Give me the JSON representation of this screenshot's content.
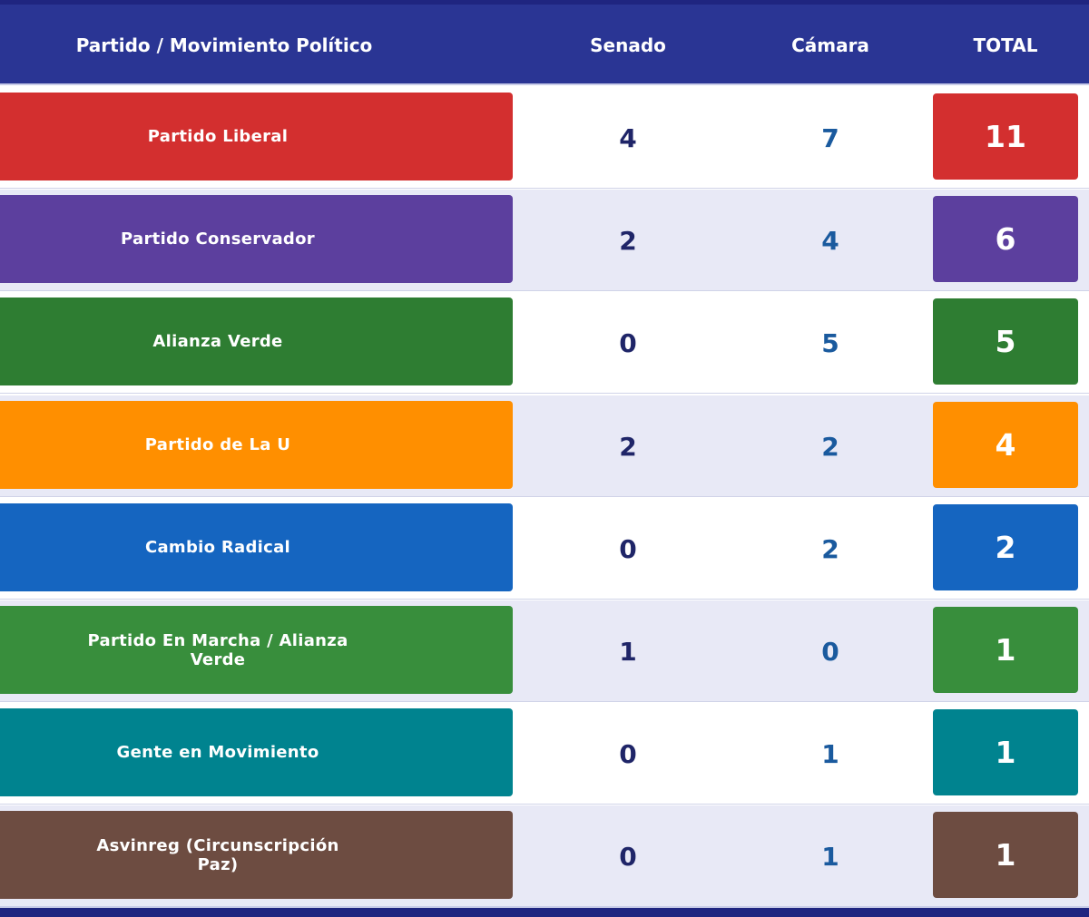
{
  "chart_data": {
    "type": "table",
    "columns": [
      "Partido / Movimiento Político",
      "Senado",
      "Cámara",
      "TOTAL"
    ],
    "rows": [
      {
        "party": "Partido Liberal",
        "senado": 4,
        "camara": 7,
        "total": 11,
        "color": "#d32f2f"
      },
      {
        "party": "Partido Conservador",
        "senado": 2,
        "camara": 4,
        "total": 6,
        "color": "#5c3f9e"
      },
      {
        "party": "Alianza Verde",
        "senado": 0,
        "camara": 5,
        "total": 5,
        "color": "#2e7d32"
      },
      {
        "party": "Partido de La U",
        "senado": 2,
        "camara": 2,
        "total": 4,
        "color": "#ff8f00"
      },
      {
        "party": "Cambio Radical",
        "senado": 0,
        "camara": 2,
        "total": 2,
        "color": "#1565c0"
      },
      {
        "party": "Partido En Marcha / Alianza Verde",
        "senado": 1,
        "camara": 0,
        "total": 1,
        "color": "#388e3c"
      },
      {
        "party": "Gente en Movimiento",
        "senado": 0,
        "camara": 1,
        "total": 1,
        "color": "#00838f"
      },
      {
        "party": "Asvinreg (Circunscripción Paz)",
        "senado": 0,
        "camara": 1,
        "total": 1,
        "color": "#6d4c41"
      }
    ]
  },
  "colors": {
    "header_bg": "#2a3594",
    "accent_rule": "#1f2580",
    "alt_row_bg": "#e8e9f6",
    "senado_text": "#1f2568",
    "camara_text": "#1a5a9e"
  }
}
